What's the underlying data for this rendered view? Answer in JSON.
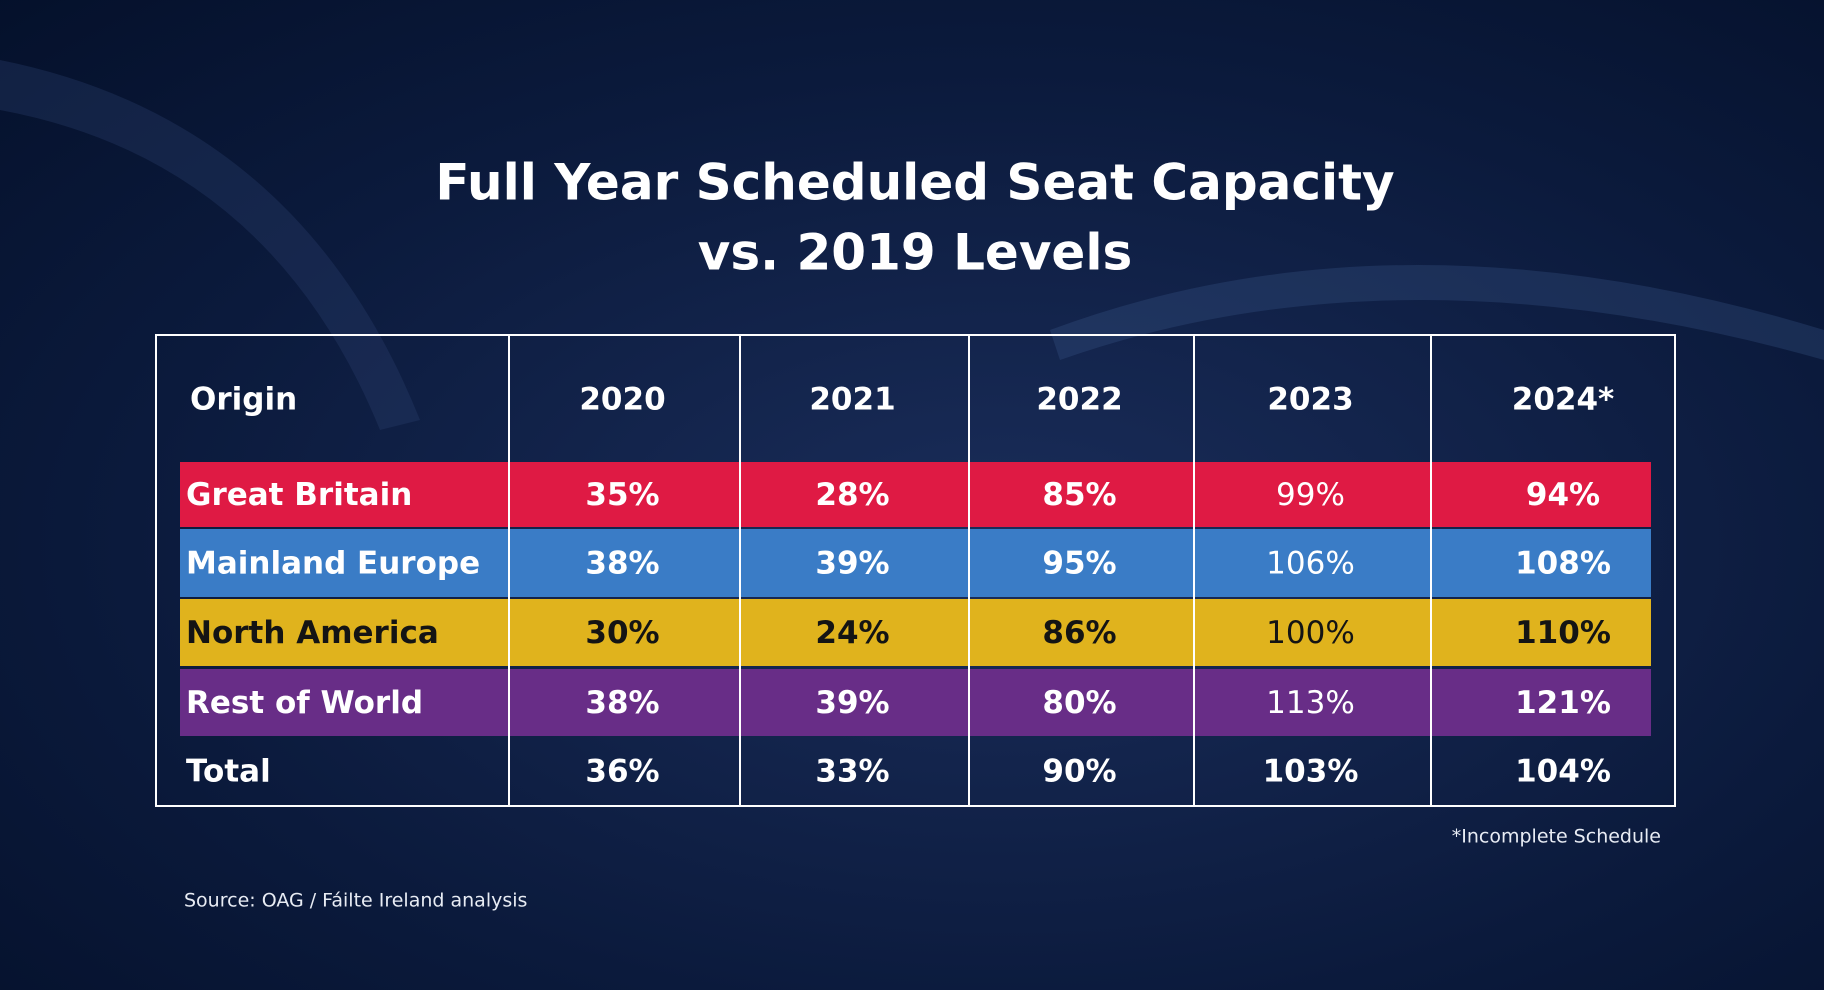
{
  "title": [
    "Full Year Scheduled Seat Capacity",
    "vs. 2019 Levels"
  ],
  "table": {
    "header": [
      "Origin",
      "2020",
      "2021",
      "2022",
      "2023",
      "2024*"
    ],
    "rows": [
      [
        "Great Britain",
        "35%",
        "28%",
        "85%",
        "99%",
        "94%"
      ],
      [
        "Mainland Europe",
        "38%",
        "39%",
        "95%",
        "106%",
        "108%"
      ],
      [
        "North America",
        "30%",
        "24%",
        "86%",
        "100%",
        "110%"
      ],
      [
        "Rest of World",
        "38%",
        "39%",
        "80%",
        "113%",
        "121%"
      ],
      [
        "Total",
        "36%",
        "33%",
        "90%",
        "103%",
        "104%"
      ]
    ]
  },
  "footnote": "*Incomplete Schedule",
  "source": "Source: OAG / Fáilte Ireland analysis"
}
